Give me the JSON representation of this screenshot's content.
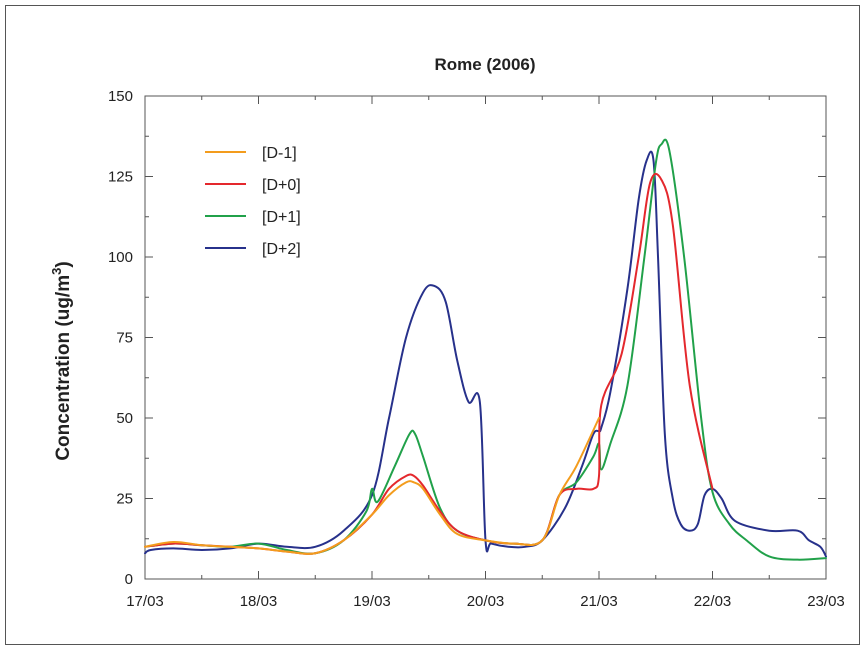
{
  "chart_data": {
    "type": "line",
    "title": "Rome (2006)",
    "xlabel": "",
    "ylabel": "Concentration (ug/m3)",
    "ylabel_parts": {
      "main": "Concentration (ug/m",
      "sup": "3",
      "end": ")"
    },
    "xlim": [
      0,
      6
    ],
    "ylim": [
      0,
      150
    ],
    "x_ticks": [
      {
        "value": 0,
        "label": "17/03"
      },
      {
        "value": 1,
        "label": "18/03"
      },
      {
        "value": 2,
        "label": "19/03"
      },
      {
        "value": 3,
        "label": "20/03"
      },
      {
        "value": 4,
        "label": "21/03"
      },
      {
        "value": 5,
        "label": "22/03"
      },
      {
        "value": 6,
        "label": "23/03"
      }
    ],
    "y_ticks": [
      0,
      25,
      50,
      75,
      100,
      125,
      150
    ],
    "grid": false,
    "legend_position": "top-left",
    "series": [
      {
        "name": "[D-1]",
        "color": "#f39c1d",
        "x": [
          0,
          0.25,
          0.5,
          0.75,
          1.0,
          1.25,
          1.5,
          1.75,
          2.0,
          2.15,
          2.3,
          2.37,
          2.45,
          2.6,
          2.75,
          3.0,
          3.25,
          3.5,
          3.65,
          3.8,
          4.0
        ],
        "y": [
          10,
          11.5,
          10.5,
          10,
          9.5,
          8.5,
          8,
          12,
          20,
          26,
          30,
          30,
          28,
          20,
          14,
          12,
          11,
          12,
          26,
          35,
          50
        ]
      },
      {
        "name": "[D+0]",
        "color": "#e4282d",
        "x": [
          0,
          0.25,
          0.5,
          0.75,
          1.0,
          1.25,
          1.5,
          1.75,
          2.0,
          2.15,
          2.3,
          2.37,
          2.45,
          2.6,
          2.75,
          3.0,
          3.25,
          3.5,
          3.65,
          3.8,
          3.95,
          4.0,
          4.02,
          4.2,
          4.35,
          4.45,
          4.55,
          4.65,
          4.8,
          5.0
        ],
        "y": [
          10,
          11,
          10.5,
          10,
          9.5,
          8.5,
          8,
          12,
          20,
          28,
          32,
          32,
          29,
          21,
          15,
          12,
          11,
          12,
          26,
          28,
          28,
          32,
          54,
          70,
          100,
          123,
          124,
          110,
          60,
          28
        ]
      },
      {
        "name": "[D+1]",
        "color": "#21a14a",
        "x": [
          0,
          0.25,
          0.5,
          0.75,
          1.0,
          1.25,
          1.5,
          1.75,
          1.95,
          2.0,
          2.05,
          2.2,
          2.33,
          2.38,
          2.45,
          2.6,
          2.75,
          3.0,
          3.25,
          3.5,
          3.65,
          3.8,
          3.95,
          4.0,
          4.02,
          4.1,
          4.25,
          4.4,
          4.5,
          4.55,
          4.62,
          4.75,
          4.9,
          5.0,
          5.15,
          5.3,
          5.5,
          5.75,
          6.0
        ],
        "y": [
          10,
          11,
          10.5,
          10,
          11,
          9,
          8,
          12,
          21,
          28,
          24,
          35,
          45,
          45,
          38,
          22,
          15,
          12,
          11,
          12,
          26,
          30,
          38,
          42,
          34,
          42,
          60,
          100,
          129,
          135,
          133,
          100,
          50,
          27,
          17,
          12,
          7,
          6,
          6.5
        ]
      },
      {
        "name": "[D+2]",
        "color": "#27318b",
        "x": [
          0,
          0.05,
          0.25,
          0.5,
          0.75,
          1.0,
          1.25,
          1.5,
          1.75,
          2.0,
          2.15,
          2.3,
          2.45,
          2.55,
          2.65,
          2.75,
          2.85,
          2.95,
          3.0,
          3.05,
          3.2,
          3.35,
          3.5,
          3.7,
          3.85,
          3.95,
          4.0,
          4.02,
          4.1,
          4.25,
          4.35,
          4.42,
          4.48,
          4.52,
          4.58,
          4.65,
          4.72,
          4.8,
          4.87,
          4.93,
          5.0,
          5.08,
          5.2,
          5.5,
          5.75,
          5.85,
          5.95,
          6.0
        ],
        "y": [
          8,
          9,
          9.5,
          9,
          9.5,
          11,
          10,
          10,
          15,
          26,
          50,
          75,
          89,
          91,
          86,
          68,
          55,
          55,
          12,
          11,
          10,
          10,
          12,
          22,
          35,
          45,
          46,
          47,
          58,
          90,
          118,
          130,
          130,
          100,
          45,
          25,
          17,
          15,
          17,
          26,
          28,
          25,
          18,
          15,
          15,
          12,
          10,
          7
        ]
      }
    ]
  }
}
